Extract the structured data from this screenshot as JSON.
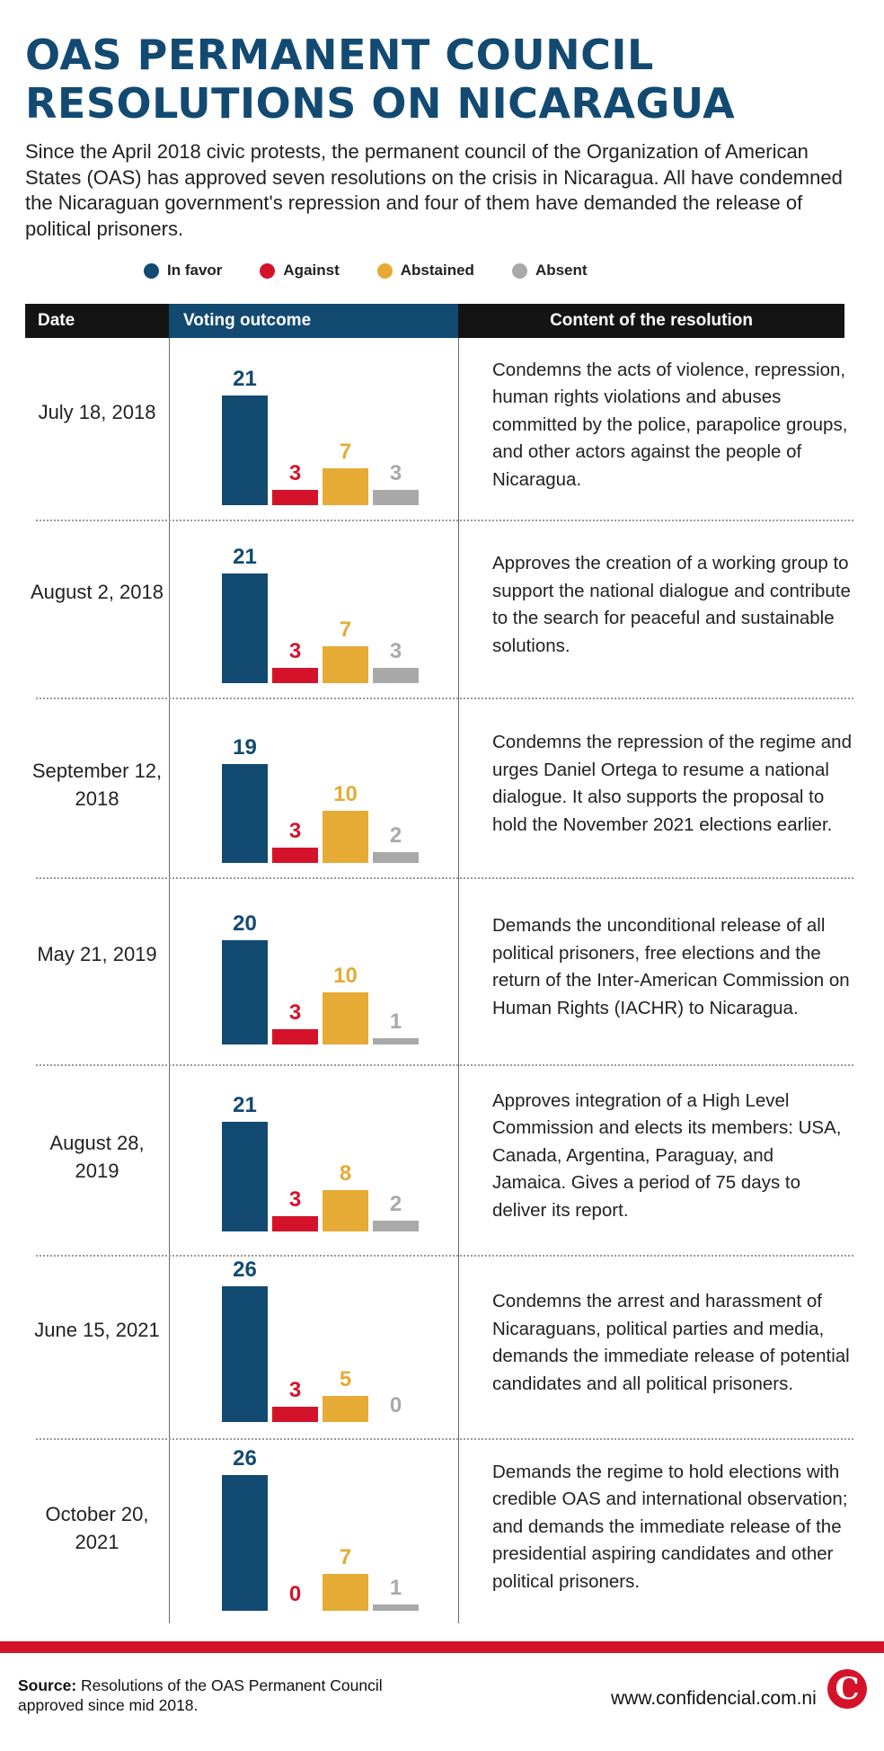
{
  "title": {
    "line1": "OAS PERMANENT COUNCIL",
    "line2": "RESOLUTIONS ON NICARAGUA"
  },
  "subtitle": "Since the April 2018 civic protests, the permanent council of the Organization of American States (OAS) has approved seven resolutions on the crisis in Nicaragua. All have condemned the Nicaraguan government's repression and four of them have demanded the release of political prisoners.",
  "colors": {
    "in_favor": "#124a72",
    "against": "#d4132b",
    "abstained": "#e5ab35",
    "absent": "#a9a9a9",
    "header_dark": "#141414",
    "header_blue": "#124a72"
  },
  "legend": [
    {
      "label": "In favor",
      "color": "#124a72"
    },
    {
      "label": "Against",
      "color": "#d4132b"
    },
    {
      "label": "Abstained",
      "color": "#e5ab35"
    },
    {
      "label": "Absent",
      "color": "#a9a9a9"
    }
  ],
  "table_headers": {
    "date": "Date",
    "voting": "Voting outcome",
    "content": "Content of the resolution"
  },
  "chart_data": {
    "type": "bar",
    "categories": [
      "In favor",
      "Against",
      "Abstained",
      "Absent"
    ],
    "resolutions": [
      {
        "date": "July 18, 2018",
        "votes": [
          21,
          3,
          7,
          3
        ],
        "content": "Condemns the acts of violence, repression, human rights violations and abuses committed by the police, parapolice groups, and other actors against the people of Nicaragua."
      },
      {
        "date": "August 2, 2018",
        "votes": [
          21,
          3,
          7,
          3
        ],
        "content": "Approves the creation of a working group to support the national dialogue and contribute to the search for peaceful and sustainable solutions."
      },
      {
        "date": "September 12, 2018",
        "votes": [
          19,
          3,
          10,
          2
        ],
        "content": "Condemns the repression of the regime and urges Daniel Ortega to resume a national dialogue. It also supports the proposal to hold the November 2021 elections earlier."
      },
      {
        "date": "May 21, 2019",
        "votes": [
          20,
          3,
          10,
          1
        ],
        "content": "Demands the unconditional release of all political prisoners, free elections and the return of the Inter-American Commission on Human Rights (IACHR) to Nicaragua."
      },
      {
        "date": "August 28, 2019",
        "votes": [
          21,
          3,
          8,
          2
        ],
        "content": "Approves integration of a High Level Commission and elects its members: USA, Canada, Argentina, Paraguay, and Jamaica. Gives a period of 75 days to deliver its report."
      },
      {
        "date": "June 15, 2021",
        "votes": [
          26,
          3,
          5,
          0
        ],
        "content": "Condemns the arrest and harassment of Nicaraguans, political parties and media, demands the immediate release of potential candidates and all political prisoners."
      },
      {
        "date": "October 20, 2021",
        "votes": [
          26,
          0,
          7,
          1
        ],
        "content": "Demands the regime to hold elections with credible OAS and international observation; and demands the immediate release of the presidential aspiring candidates and other political prisoners."
      }
    ]
  },
  "footer": {
    "source_label": "Source:",
    "source_text": " Resolutions of the OAS Permanent Council approved since mid 2018.",
    "website": "www.confidencial.com.ni",
    "logo_letter": "C"
  }
}
